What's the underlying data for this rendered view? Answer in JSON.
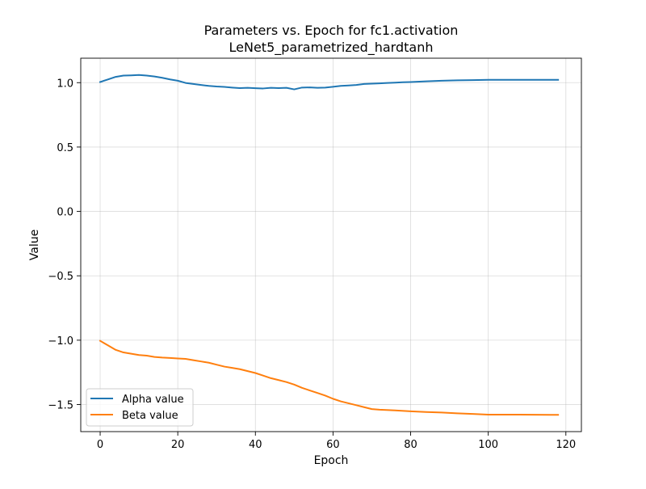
{
  "chart_data": {
    "type": "line",
    "title": "Parameters vs. Epoch for fc1.activation",
    "subtitle": "LeNet5_parametrized_hardtanh",
    "xlabel": "Epoch",
    "ylabel": "Value",
    "xlim": [
      -5,
      124
    ],
    "ylim": [
      -1.71,
      1.19
    ],
    "x_ticks": [
      0,
      20,
      40,
      60,
      80,
      100,
      120
    ],
    "x_tick_labels": [
      "0",
      "20",
      "40",
      "60",
      "80",
      "100",
      "120"
    ],
    "y_ticks": [
      -1.5,
      -1.0,
      -0.5,
      0.0,
      0.5,
      1.0
    ],
    "y_tick_labels": [
      "−1.5",
      "−1.0",
      "−0.5",
      "0.0",
      "0.5",
      "1.0"
    ],
    "grid": true,
    "legend_position": "lower-left",
    "series": [
      {
        "name": "Alpha value",
        "color": "#1f77b4",
        "x": [
          0,
          2,
          4,
          6,
          8,
          10,
          12,
          14,
          16,
          18,
          20,
          22,
          24,
          26,
          28,
          30,
          32,
          34,
          36,
          38,
          40,
          42,
          44,
          46,
          48,
          50,
          52,
          54,
          56,
          58,
          60,
          62,
          64,
          66,
          68,
          70,
          72,
          74,
          76,
          78,
          80,
          84,
          88,
          92,
          96,
          100,
          104,
          108,
          112,
          116,
          118
        ],
        "y": [
          1.005,
          1.025,
          1.045,
          1.055,
          1.057,
          1.06,
          1.055,
          1.048,
          1.038,
          1.025,
          1.015,
          0.998,
          0.99,
          0.982,
          0.975,
          0.97,
          0.967,
          0.962,
          0.958,
          0.96,
          0.957,
          0.955,
          0.96,
          0.958,
          0.96,
          0.948,
          0.962,
          0.963,
          0.96,
          0.962,
          0.968,
          0.975,
          0.978,
          0.982,
          0.99,
          0.992,
          0.995,
          0.998,
          1.0,
          1.003,
          1.005,
          1.01,
          1.015,
          1.018,
          1.02,
          1.022,
          1.022,
          1.022,
          1.022,
          1.022,
          1.022
        ]
      },
      {
        "name": "Beta value",
        "color": "#ff7f0e",
        "x": [
          0,
          2,
          4,
          6,
          8,
          10,
          12,
          14,
          16,
          18,
          20,
          22,
          24,
          26,
          28,
          30,
          32,
          34,
          36,
          38,
          40,
          42,
          44,
          46,
          48,
          50,
          52,
          54,
          56,
          58,
          60,
          62,
          64,
          66,
          68,
          70,
          72,
          76,
          80,
          84,
          88,
          92,
          96,
          100,
          104,
          108,
          112,
          116,
          118
        ],
        "y": [
          -1.005,
          -1.04,
          -1.075,
          -1.095,
          -1.105,
          -1.115,
          -1.12,
          -1.13,
          -1.135,
          -1.138,
          -1.142,
          -1.145,
          -1.155,
          -1.165,
          -1.175,
          -1.19,
          -1.205,
          -1.215,
          -1.225,
          -1.24,
          -1.255,
          -1.275,
          -1.295,
          -1.31,
          -1.325,
          -1.345,
          -1.37,
          -1.39,
          -1.41,
          -1.43,
          -1.455,
          -1.475,
          -1.49,
          -1.505,
          -1.52,
          -1.535,
          -1.54,
          -1.545,
          -1.552,
          -1.558,
          -1.562,
          -1.568,
          -1.573,
          -1.578,
          -1.578,
          -1.578,
          -1.579,
          -1.58,
          -1.58
        ]
      }
    ]
  }
}
